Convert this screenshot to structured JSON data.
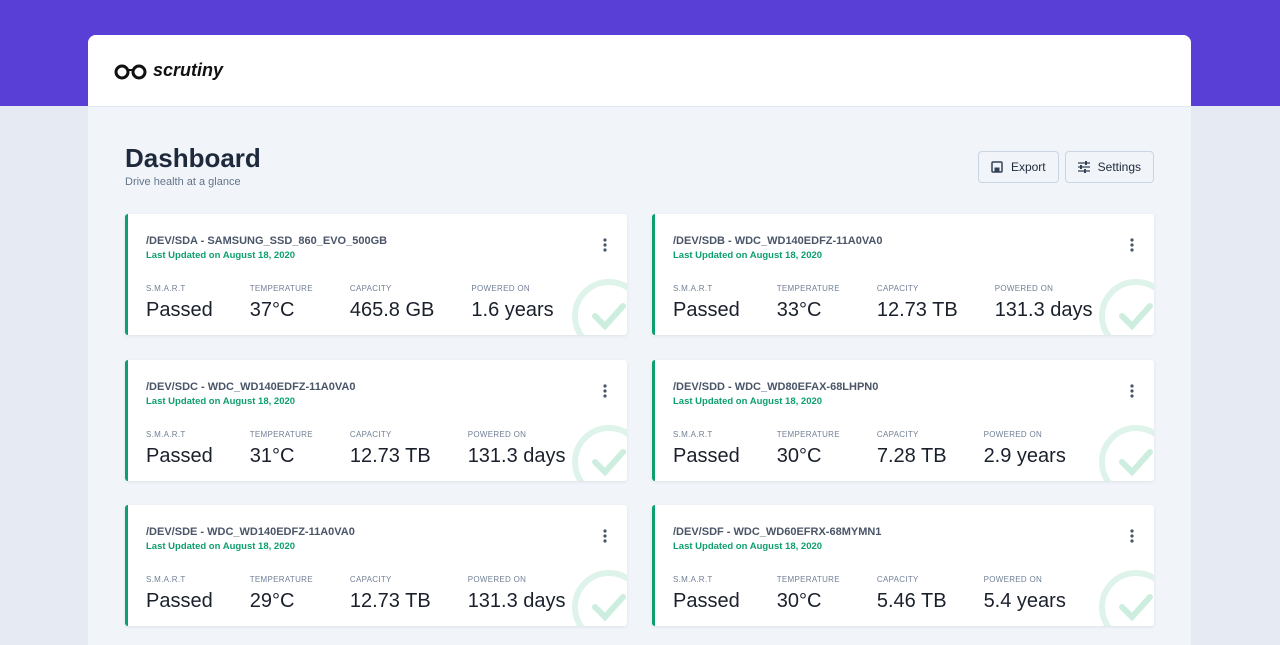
{
  "header": {
    "logo": "scrutiny"
  },
  "page": {
    "title": "Dashboard",
    "subtitle": "Drive health at a glance",
    "actions": [
      "Export",
      "Settings"
    ]
  },
  "drives": [
    {
      "title": "/DEV/SDA - SAMSUNG_SSD_860_EVO_500GB",
      "updated": "Last Updated on August 18, 2020",
      "stats": [
        {
          "label": "S.M.A.R.T",
          "value": "Passed"
        },
        {
          "label": "TEMPERATURE",
          "value": "37°C"
        },
        {
          "label": "CAPACITY",
          "value": "465.8 GB"
        },
        {
          "label": "POWERED ON",
          "value": "1.6 years"
        }
      ]
    },
    {
      "title": "/DEV/SDB - WDC_WD140EDFZ-11A0VA0",
      "updated": "Last Updated on August 18, 2020",
      "stats": [
        {
          "label": "S.M.A.R.T",
          "value": "Passed"
        },
        {
          "label": "TEMPERATURE",
          "value": "33°C"
        },
        {
          "label": "CAPACITY",
          "value": "12.73 TB"
        },
        {
          "label": "POWERED ON",
          "value": "131.3 days"
        }
      ]
    },
    {
      "title": "/DEV/SDC - WDC_WD140EDFZ-11A0VA0",
      "updated": "Last Updated on August 18, 2020",
      "stats": [
        {
          "label": "S.M.A.R.T",
          "value": "Passed"
        },
        {
          "label": "TEMPERATURE",
          "value": "31°C"
        },
        {
          "label": "CAPACITY",
          "value": "12.73 TB"
        },
        {
          "label": "POWERED ON",
          "value": "131.3 days"
        }
      ]
    },
    {
      "title": "/DEV/SDD - WDC_WD80EFAX-68LHPN0",
      "updated": "Last Updated on August 18, 2020",
      "stats": [
        {
          "label": "S.M.A.R.T",
          "value": "Passed"
        },
        {
          "label": "TEMPERATURE",
          "value": "30°C"
        },
        {
          "label": "CAPACITY",
          "value": "7.28 TB"
        },
        {
          "label": "POWERED ON",
          "value": "2.9 years"
        }
      ]
    },
    {
      "title": "/DEV/SDE - WDC_WD140EDFZ-11A0VA0",
      "updated": "Last Updated on August 18, 2020",
      "stats": [
        {
          "label": "S.M.A.R.T",
          "value": "Passed"
        },
        {
          "label": "TEMPERATURE",
          "value": "29°C"
        },
        {
          "label": "CAPACITY",
          "value": "12.73 TB"
        },
        {
          "label": "POWERED ON",
          "value": "131.3 days"
        }
      ]
    },
    {
      "title": "/DEV/SDF - WDC_WD60EFRX-68MYMN1",
      "updated": "Last Updated on August 18, 2020",
      "stats": [
        {
          "label": "S.M.A.R.T",
          "value": "Passed"
        },
        {
          "label": "TEMPERATURE",
          "value": "30°C"
        },
        {
          "label": "CAPACITY",
          "value": "5.46 TB"
        },
        {
          "label": "POWERED ON",
          "value": "5.4 years"
        }
      ]
    }
  ]
}
